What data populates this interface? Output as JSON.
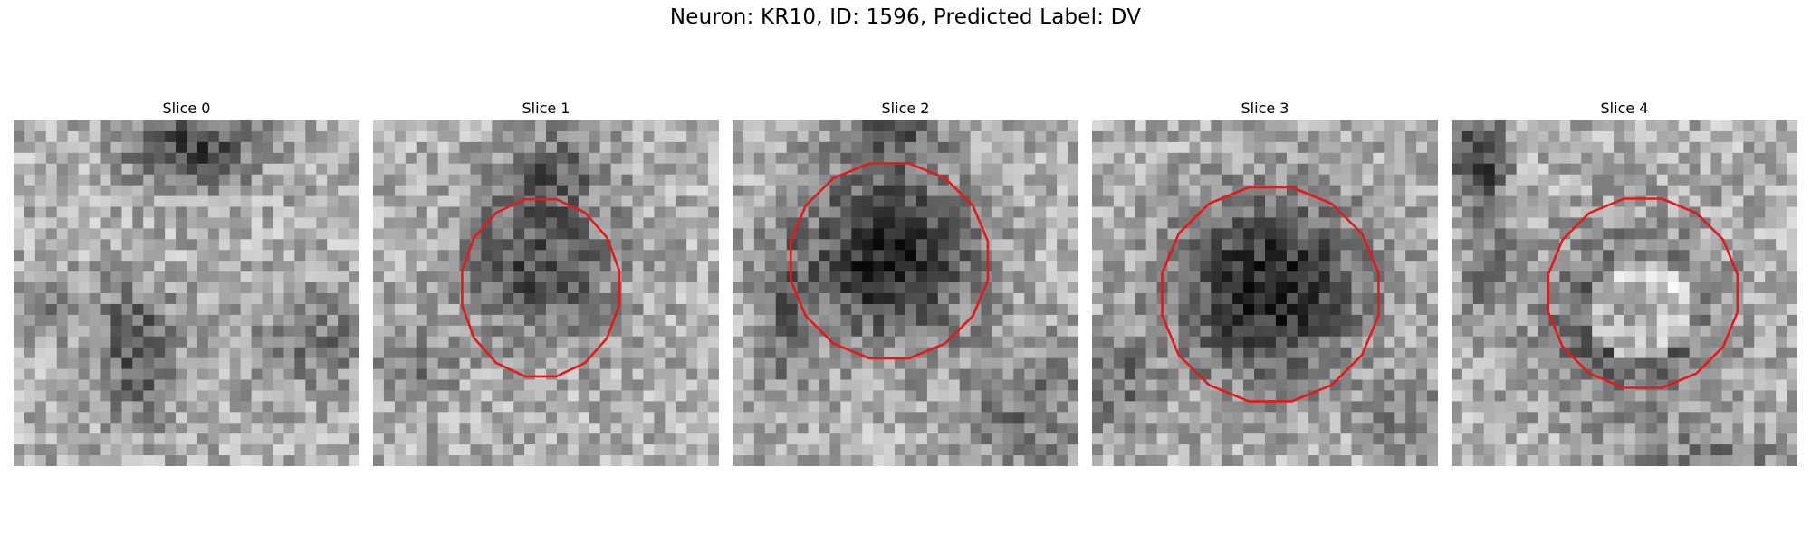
{
  "figure": {
    "title": "Neuron: KR10, ID: 1596, Predicted Label: DV",
    "contour_color": "#e31a1c",
    "grid_size": 32
  },
  "slices": [
    {
      "title": "Slice 0",
      "has_contour": false
    },
    {
      "title": "Slice 1",
      "has_contour": true
    },
    {
      "title": "Slice 2",
      "has_contour": true
    },
    {
      "title": "Slice 3",
      "has_contour": true
    },
    {
      "title": "Slice 4",
      "has_contour": true
    }
  ]
}
